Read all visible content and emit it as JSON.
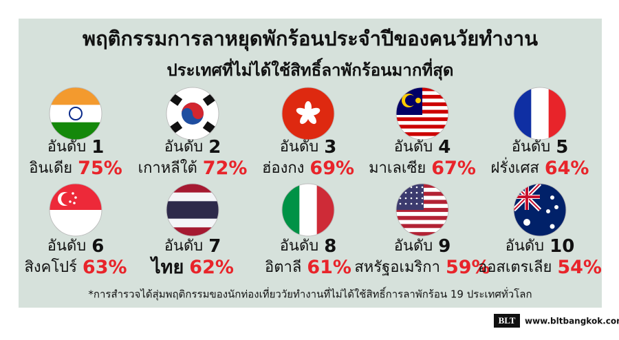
{
  "header": {
    "title": "พฤติกรรมการลาหยุดพักร้อนประจำปีของคนวัยทำงาน",
    "subtitle": "ประเทศที่ไม่ได้ใช้สิทธิ์ลาพักร้อนมากที่สุด"
  },
  "items": [
    {
      "rank_label": "อันดับ",
      "rank": "1",
      "country": "อินเดีย",
      "percent": "75%"
    },
    {
      "rank_label": "อันดับ",
      "rank": "2",
      "country": "เกาหลีใต้",
      "percent": "72%"
    },
    {
      "rank_label": "อันดับ",
      "rank": "3",
      "country": "ฮ่องกง",
      "percent": "69%"
    },
    {
      "rank_label": "อันดับ",
      "rank": "4",
      "country": "มาเลเซีย",
      "percent": "67%"
    },
    {
      "rank_label": "อันดับ",
      "rank": "5",
      "country": "ฝรั่งเศส",
      "percent": "64%"
    },
    {
      "rank_label": "อันดับ",
      "rank": "6",
      "country": "สิงคโปร์",
      "percent": "63%"
    },
    {
      "rank_label": "อันดับ",
      "rank": "7",
      "country": "ไทย",
      "percent": "62%"
    },
    {
      "rank_label": "อันดับ",
      "rank": "8",
      "country": "อิตาลี",
      "percent": "61%"
    },
    {
      "rank_label": "อันดับ",
      "rank": "9",
      "country": "สหรัฐอเมริกา",
      "percent": "59%"
    },
    {
      "rank_label": "อันดับ",
      "rank": "10",
      "country": "ออสเตรเลีย",
      "percent": "54%"
    }
  ],
  "footnote": "*การสำรวจได้สุ่มพฤติกรรมของนักท่องเที่ยววัยทำงานที่ไม่ได้ใช้สิทธิ์การลาพักร้อน 19 ประเทศทั่วโลก",
  "footer": {
    "logo": "BLT",
    "url": "www.bltbangkok.com"
  }
}
